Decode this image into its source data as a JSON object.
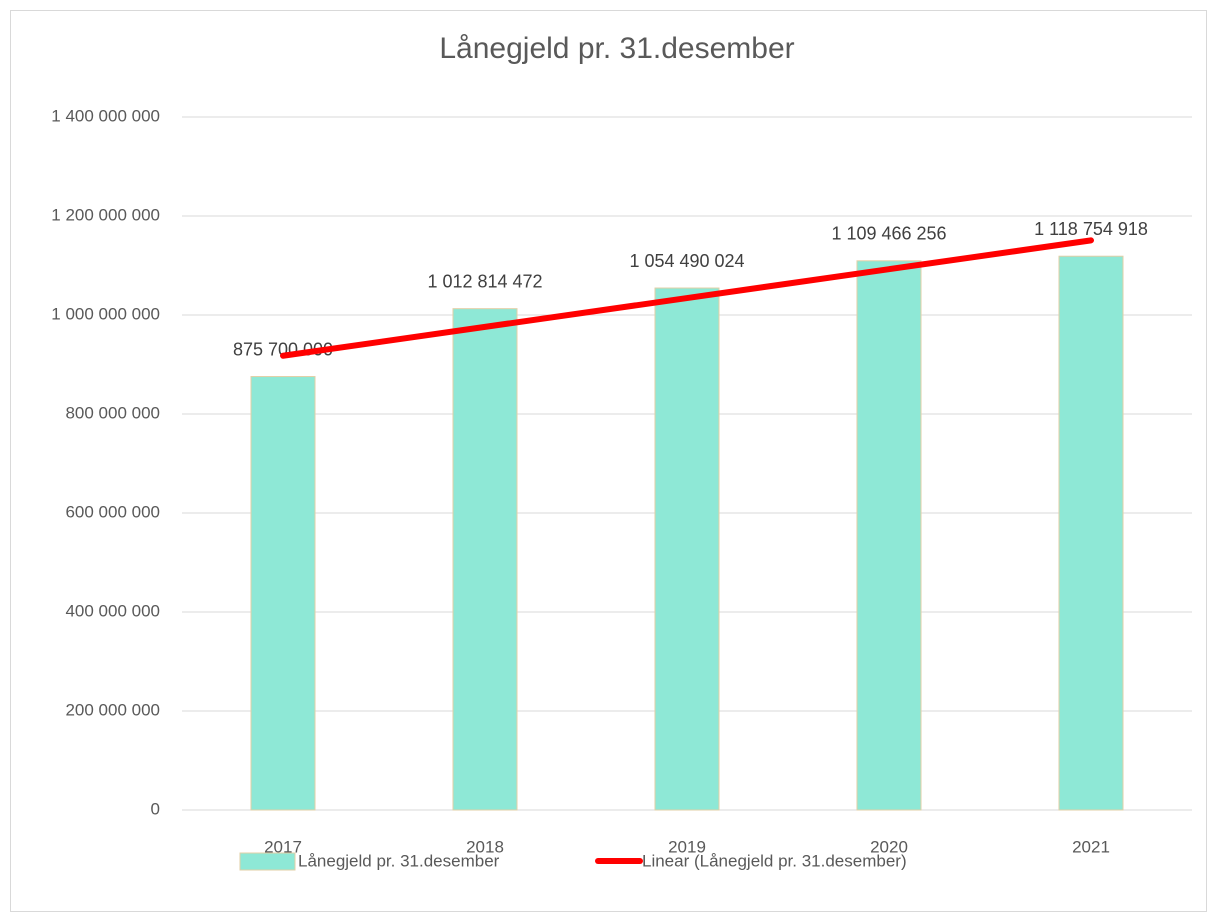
{
  "chart_data": {
    "type": "bar",
    "title": "Lånegjeld pr. 31.desember",
    "categories": [
      "2017",
      "2018",
      "2019",
      "2020",
      "2021"
    ],
    "series": [
      {
        "name": "Lånegjeld pr. 31.desember",
        "color": "#8ee8d6",
        "values": [
          875700000,
          1012814472,
          1054490024,
          1109466256,
          1118754918
        ],
        "value_labels": [
          "875 700 000",
          "1 012 814 472",
          "1 054 490 024",
          "1 109 466 256",
          "1 118 754 918"
        ]
      },
      {
        "name": "Linear (Lånegjeld pr. 31.desember)",
        "color": "#ff0000",
        "type": "line",
        "values": [
          917690000,
          975970000,
          1034250000,
          1092520000,
          1150800000
        ]
      }
    ],
    "ylim": [
      0,
      1400000000
    ],
    "yticks": [
      0,
      {
        "value": 200000000,
        "label": "200 000 000"
      },
      {
        "value": 400000000,
        "label": "400 000 000"
      },
      {
        "value": 600000000,
        "label": "600 000 000"
      },
      {
        "value": 800000000,
        "label": "800 000 000"
      },
      {
        "value": 1000000000,
        "label": "1 000 000 000"
      },
      {
        "value": 1200000000,
        "label": "1 200 000 000"
      },
      {
        "value": 1400000000,
        "label": "1 400 000 000"
      }
    ],
    "grid": true,
    "legend": "bottom"
  }
}
